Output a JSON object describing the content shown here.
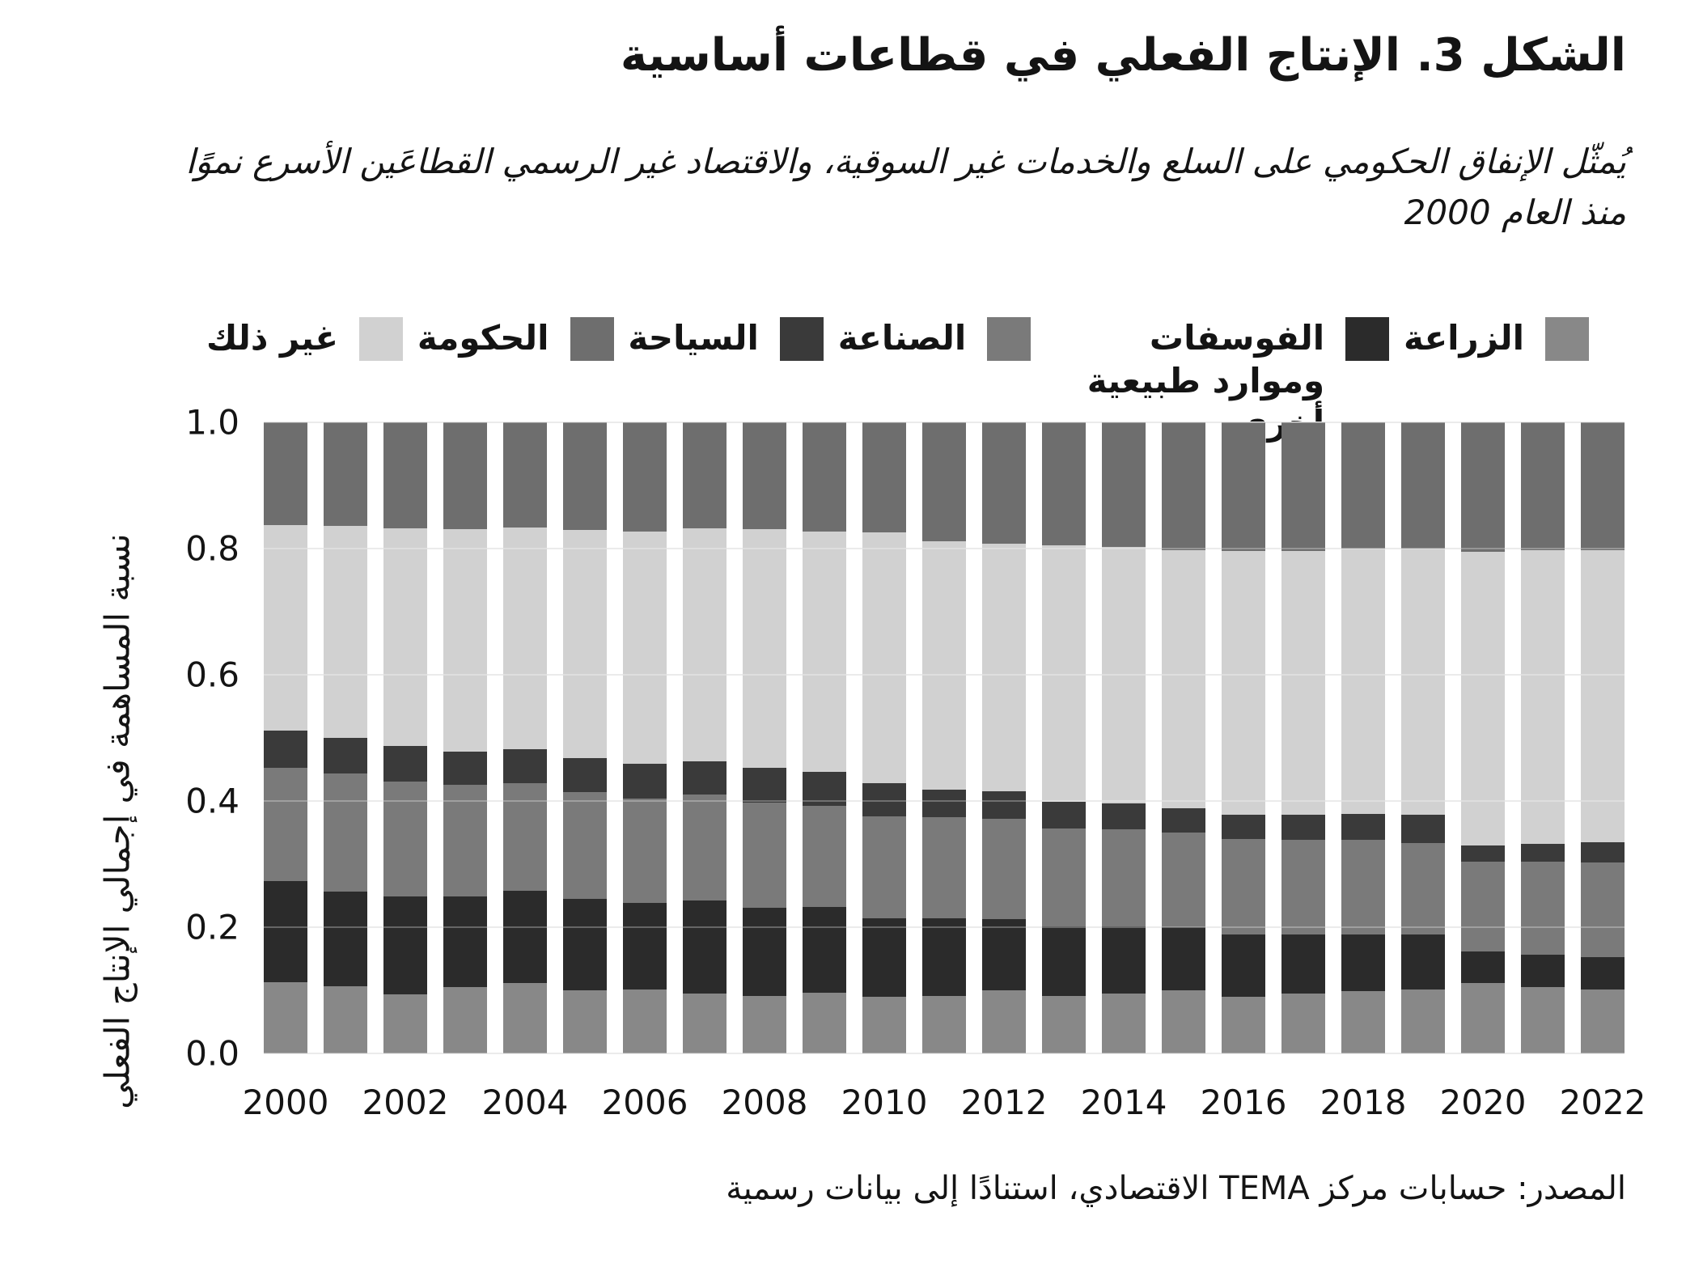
{
  "header": {
    "figure_title": "الشكل 3. الإنتاج الفعلي في قطاعات أساسية",
    "subtitle": "يُمثّل الإنفاق الحكومي على السلع والخدمات غير السوقية، والاقتصاد غير الرسمي القطاعَين الأسرع نموًا منذ العام 2000"
  },
  "legend": {
    "items": [
      {
        "id": "agriculture",
        "label": "الزراعة",
        "color": "#888888"
      },
      {
        "id": "phosphates",
        "label": "الفوسفات وموارد طبيعية أخرى",
        "color": "#2b2b2b"
      },
      {
        "id": "industry",
        "label": "الصناعة",
        "color": "#7a7a7a"
      },
      {
        "id": "tourism",
        "label": "السياحة",
        "color": "#3a3a3a"
      },
      {
        "id": "government",
        "label": "الحكومة",
        "color": "#6e6e6e"
      },
      {
        "id": "other",
        "label": "غير ذلك",
        "color": "#d1d1d1"
      }
    ]
  },
  "chart_data": {
    "type": "bar",
    "stacked": true,
    "title": "الشكل 3. الإنتاج الفعلي في قطاعات أساسية",
    "ylabel": "نسبة المساهمة في إجمالي الإنتاج الفعلي",
    "xlabel": "",
    "ylim": [
      0.0,
      1.0
    ],
    "grid": "horizontal",
    "legend_position": "top",
    "y_ticks": [
      "0.0",
      "0.2",
      "0.4",
      "0.6",
      "0.8",
      "1.0"
    ],
    "categories": [
      "2000",
      "2001",
      "2002",
      "2003",
      "2004",
      "2005",
      "2006",
      "2007",
      "2008",
      "2009",
      "2010",
      "2011",
      "2012",
      "2013",
      "2014",
      "2015",
      "2016",
      "2017",
      "2018",
      "2019",
      "2020",
      "2021",
      "2022"
    ],
    "x_tick_labels": [
      "2000",
      "2002",
      "2004",
      "2006",
      "2008",
      "2010",
      "2012",
      "2014",
      "2016",
      "2018",
      "2020",
      "2022"
    ],
    "stack_order_note": "series listed bottom-to-top",
    "series": [
      {
        "id": "agriculture",
        "name": "الزراعة",
        "color": "#888888",
        "values": [
          0.113,
          0.106,
          0.094,
          0.105,
          0.112,
          0.1,
          0.101,
          0.095,
          0.091,
          0.096,
          0.09,
          0.091,
          0.1,
          0.091,
          0.095,
          0.1,
          0.09,
          0.095,
          0.099,
          0.101,
          0.112,
          0.105,
          0.101
        ]
      },
      {
        "id": "phosphates",
        "name": "الفوسفات وموارد طبيعية أخرى",
        "color": "#2b2b2b",
        "values": [
          0.16,
          0.15,
          0.155,
          0.144,
          0.146,
          0.145,
          0.137,
          0.147,
          0.14,
          0.136,
          0.124,
          0.123,
          0.113,
          0.11,
          0.106,
          0.1,
          0.098,
          0.093,
          0.089,
          0.087,
          0.049,
          0.052,
          0.051
        ]
      },
      {
        "id": "industry",
        "name": "الصناعة",
        "color": "#7a7a7a",
        "values": [
          0.179,
          0.187,
          0.182,
          0.177,
          0.17,
          0.169,
          0.166,
          0.168,
          0.166,
          0.16,
          0.162,
          0.16,
          0.159,
          0.155,
          0.154,
          0.15,
          0.152,
          0.151,
          0.151,
          0.145,
          0.143,
          0.147,
          0.15
        ]
      },
      {
        "id": "tourism",
        "name": "السياحة",
        "color": "#3a3a3a",
        "values": [
          0.06,
          0.057,
          0.056,
          0.052,
          0.054,
          0.054,
          0.055,
          0.053,
          0.055,
          0.054,
          0.052,
          0.044,
          0.043,
          0.043,
          0.041,
          0.038,
          0.038,
          0.039,
          0.04,
          0.045,
          0.026,
          0.028,
          0.033
        ]
      },
      {
        "id": "other",
        "name": "غير ذلك",
        "color": "#d1d1d1",
        "values": [
          0.325,
          0.336,
          0.345,
          0.353,
          0.351,
          0.361,
          0.368,
          0.369,
          0.379,
          0.381,
          0.398,
          0.394,
          0.393,
          0.406,
          0.407,
          0.409,
          0.418,
          0.418,
          0.421,
          0.422,
          0.465,
          0.465,
          0.463
        ]
      },
      {
        "id": "government",
        "name": "الحكومة",
        "color": "#6e6e6e",
        "values": [
          0.163,
          0.164,
          0.168,
          0.169,
          0.167,
          0.171,
          0.173,
          0.168,
          0.169,
          0.173,
          0.174,
          0.188,
          0.192,
          0.195,
          0.197,
          0.203,
          0.204,
          0.204,
          0.2,
          0.2,
          0.205,
          0.203,
          0.202
        ]
      }
    ]
  },
  "footer": {
    "source": "المصدر: حسابات مركز TEMA الاقتصادي، استنادًا إلى بيانات رسمية"
  }
}
